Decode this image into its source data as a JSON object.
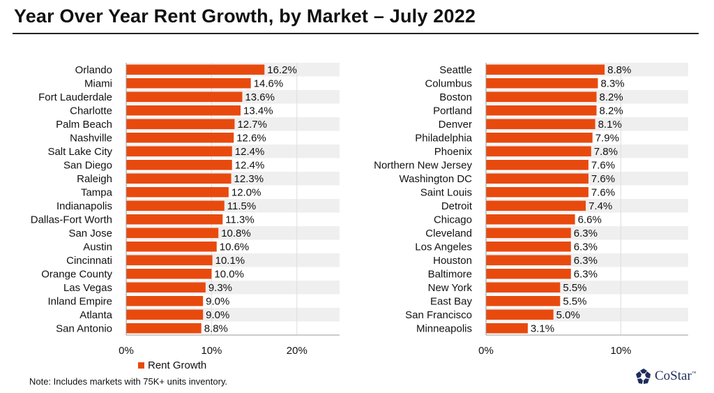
{
  "title": "Year Over Year Rent Growth, by Market –  July 2022",
  "note": "Note: Includes markets with 75K+ units inventory.",
  "legend_label": "Rent Growth",
  "logo_text": "CoStar",
  "colors": {
    "bar": "#e84a0e",
    "stripe": "#efefef",
    "logo": "#1f2d5c"
  },
  "chart_data": [
    {
      "type": "bar",
      "orientation": "horizontal",
      "categories": [
        "Orlando",
        "Miami",
        "Fort Lauderdale",
        "Charlotte",
        "Palm Beach",
        "Nashville",
        "Salt Lake City",
        "San Diego",
        "Raleigh",
        "Tampa",
        "Indianapolis",
        "Dallas-Fort Worth",
        "San Jose",
        "Austin",
        "Cincinnati",
        "Orange County",
        "Las Vegas",
        "Inland Empire",
        "Atlanta",
        "San Antonio"
      ],
      "series": [
        {
          "name": "Rent Growth",
          "values": [
            16.2,
            14.6,
            13.6,
            13.4,
            12.7,
            12.6,
            12.4,
            12.4,
            12.3,
            12.0,
            11.5,
            11.3,
            10.8,
            10.6,
            10.1,
            10.0,
            9.3,
            9.0,
            9.0,
            8.8
          ]
        }
      ],
      "data_labels": [
        "16.2%",
        "14.6%",
        "13.6%",
        "13.4%",
        "12.7%",
        "12.6%",
        "12.4%",
        "12.4%",
        "12.3%",
        "12.0%",
        "11.5%",
        "11.3%",
        "10.8%",
        "10.6%",
        "10.1%",
        "10.0%",
        "9.3%",
        "9.0%",
        "9.0%",
        "8.8%"
      ],
      "xlim": [
        0,
        25
      ],
      "xticks": [
        0,
        10,
        20
      ],
      "xtick_labels": [
        "0%",
        "10%",
        "20%"
      ],
      "grid": true,
      "legend": "bottom"
    },
    {
      "type": "bar",
      "orientation": "horizontal",
      "categories": [
        "Seattle",
        "Columbus",
        "Boston",
        "Portland",
        "Denver",
        "Philadelphia",
        "Phoenix",
        "Northern New Jersey",
        "Washington DC",
        "Saint Louis",
        "Detroit",
        "Chicago",
        "Cleveland",
        "Los Angeles",
        "Houston",
        "Baltimore",
        "New York",
        "East Bay",
        "San Francisco",
        "Minneapolis"
      ],
      "series": [
        {
          "name": "Rent Growth",
          "values": [
            8.8,
            8.3,
            8.2,
            8.2,
            8.1,
            7.9,
            7.8,
            7.6,
            7.6,
            7.6,
            7.4,
            6.6,
            6.3,
            6.3,
            6.3,
            6.3,
            5.5,
            5.5,
            5.0,
            3.1
          ]
        }
      ],
      "data_labels": [
        "8.8%",
        "8.3%",
        "8.2%",
        "8.2%",
        "8.1%",
        "7.9%",
        "7.8%",
        "7.6%",
        "7.6%",
        "7.6%",
        "7.4%",
        "6.6%",
        "6.3%",
        "6.3%",
        "6.3%",
        "6.3%",
        "5.5%",
        "5.5%",
        "5.0%",
        "3.1%"
      ],
      "xlim": [
        0,
        15
      ],
      "xticks": [
        0,
        10
      ],
      "xtick_labels": [
        "0%",
        "10%"
      ],
      "grid": true
    }
  ]
}
